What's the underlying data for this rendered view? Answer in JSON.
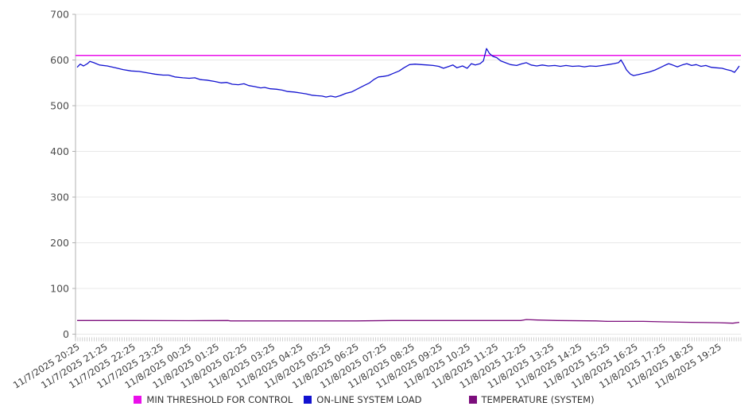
{
  "page": {
    "background": "#ffffff"
  },
  "chart_data": {
    "type": "line",
    "title": "",
    "xlabel": "",
    "ylabel": "",
    "grid": "horizontal",
    "legend_position": "bottom",
    "x_axis": {
      "labels": [
        "11/7/2025 20:25",
        "11/7/2025 21:25",
        "11/7/2025 22:25",
        "11/7/2025 23:25",
        "11/8/2025 00:25",
        "11/8/2025 01:25",
        "11/8/2025 02:25",
        "11/8/2025 03:25",
        "11/8/2025 04:25",
        "11/8/2025 05:25",
        "11/8/2025 06:25",
        "11/8/2025 07:25",
        "11/8/2025 08:25",
        "11/8/2025 09:25",
        "11/8/2025 10:25",
        "11/8/2025 11:25",
        "11/8/2025 12:25",
        "11/8/2025 13:25",
        "11/8/2025 14:25",
        "11/8/2025 15:25",
        "11/8/2025 16:25",
        "11/8/2025 17:25",
        "11/8/2025 18:25",
        "11/8/2025 19:25"
      ],
      "hours_per_label": 1,
      "span_hours": 23.73,
      "minor_tick_count": 286
    },
    "y_axis": {
      "min": 0,
      "max": 700,
      "tick_step": 100,
      "ticks": [
        0,
        100,
        200,
        300,
        400,
        500,
        600,
        700
      ]
    },
    "series": [
      {
        "name": "MIN THRESHOLD FOR CONTROL",
        "color": "#ea0fea",
        "style": "threshold",
        "value": 610
      },
      {
        "name": "ON-LINE SYSTEM LOAD",
        "color": "#1212d0",
        "style": "line",
        "points_hours_value": [
          [
            0,
            584
          ],
          [
            0.11,
            591
          ],
          [
            0.23,
            587
          ],
          [
            0.37,
            592
          ],
          [
            0.46,
            597
          ],
          [
            0.6,
            594
          ],
          [
            0.8,
            589
          ],
          [
            1.08,
            587
          ],
          [
            1.37,
            583
          ],
          [
            1.65,
            579
          ],
          [
            1.94,
            576
          ],
          [
            2.22,
            575
          ],
          [
            2.51,
            572
          ],
          [
            2.79,
            569
          ],
          [
            3.08,
            567
          ],
          [
            3.28,
            567
          ],
          [
            3.5,
            563
          ],
          [
            3.79,
            561
          ],
          [
            4.02,
            560
          ],
          [
            4.22,
            561
          ],
          [
            4.42,
            557
          ],
          [
            4.64,
            556
          ],
          [
            4.93,
            553
          ],
          [
            5.16,
            550
          ],
          [
            5.36,
            551
          ],
          [
            5.56,
            547
          ],
          [
            5.78,
            546
          ],
          [
            5.98,
            548
          ],
          [
            6.15,
            544
          ],
          [
            6.35,
            542
          ],
          [
            6.58,
            539
          ],
          [
            6.72,
            540
          ],
          [
            6.92,
            537
          ],
          [
            7.15,
            536
          ],
          [
            7.35,
            534
          ],
          [
            7.55,
            531
          ],
          [
            7.78,
            530
          ],
          [
            7.98,
            528
          ],
          [
            8.21,
            526
          ],
          [
            8.41,
            523
          ],
          [
            8.58,
            522
          ],
          [
            8.78,
            521
          ],
          [
            8.92,
            519
          ],
          [
            9.09,
            521
          ],
          [
            9.26,
            519
          ],
          [
            9.43,
            522
          ],
          [
            9.63,
            527
          ],
          [
            9.83,
            530
          ],
          [
            10.06,
            537
          ],
          [
            10.28,
            544
          ],
          [
            10.48,
            550
          ],
          [
            10.63,
            557
          ],
          [
            10.8,
            563
          ],
          [
            10.97,
            564
          ],
          [
            11.14,
            566
          ],
          [
            11.34,
            571
          ],
          [
            11.54,
            576
          ],
          [
            11.71,
            583
          ],
          [
            11.91,
            590
          ],
          [
            12.11,
            591
          ],
          [
            12.34,
            590
          ],
          [
            12.56,
            589
          ],
          [
            12.76,
            588
          ],
          [
            12.96,
            586
          ],
          [
            13.13,
            582
          ],
          [
            13.33,
            586
          ],
          [
            13.47,
            589
          ],
          [
            13.61,
            583
          ],
          [
            13.81,
            587
          ],
          [
            13.98,
            582
          ],
          [
            14.13,
            592
          ],
          [
            14.27,
            589
          ],
          [
            14.44,
            592
          ],
          [
            14.56,
            598
          ],
          [
            14.67,
            625
          ],
          [
            14.78,
            614
          ],
          [
            14.9,
            608
          ],
          [
            15.04,
            605
          ],
          [
            15.18,
            598
          ],
          [
            15.35,
            594
          ],
          [
            15.53,
            590
          ],
          [
            15.75,
            588
          ],
          [
            15.95,
            592
          ],
          [
            16.1,
            594
          ],
          [
            16.27,
            589
          ],
          [
            16.47,
            587
          ],
          [
            16.67,
            589
          ],
          [
            16.89,
            587
          ],
          [
            17.12,
            588
          ],
          [
            17.32,
            586
          ],
          [
            17.52,
            588
          ],
          [
            17.75,
            586
          ],
          [
            17.98,
            587
          ],
          [
            18.18,
            585
          ],
          [
            18.38,
            587
          ],
          [
            18.6,
            586
          ],
          [
            18.83,
            588
          ],
          [
            19.03,
            590
          ],
          [
            19.23,
            592
          ],
          [
            19.4,
            594
          ],
          [
            19.49,
            600
          ],
          [
            19.57,
            592
          ],
          [
            19.69,
            578
          ],
          [
            19.83,
            569
          ],
          [
            19.94,
            566
          ],
          [
            20.11,
            568
          ],
          [
            20.31,
            571
          ],
          [
            20.51,
            574
          ],
          [
            20.71,
            578
          ],
          [
            20.88,
            583
          ],
          [
            21.05,
            588
          ],
          [
            21.2,
            592
          ],
          [
            21.34,
            589
          ],
          [
            21.51,
            585
          ],
          [
            21.68,
            589
          ],
          [
            21.85,
            592
          ],
          [
            22.02,
            588
          ],
          [
            22.19,
            590
          ],
          [
            22.36,
            586
          ],
          [
            22.53,
            588
          ],
          [
            22.73,
            584
          ],
          [
            22.9,
            583
          ],
          [
            23.11,
            582
          ],
          [
            23.28,
            579
          ],
          [
            23.42,
            577
          ],
          [
            23.56,
            573
          ],
          [
            23.65,
            580
          ],
          [
            23.73,
            587
          ]
        ]
      },
      {
        "name": "TEMPERATURE (SYSTEM)",
        "color": "#7c0d7c",
        "style": "line",
        "points_hours_value": [
          [
            0,
            30
          ],
          [
            2,
            30
          ],
          [
            4,
            29.5
          ],
          [
            5.4,
            30
          ],
          [
            5.5,
            29
          ],
          [
            8,
            29
          ],
          [
            10,
            29
          ],
          [
            11.3,
            30
          ],
          [
            13.5,
            30
          ],
          [
            15.9,
            30
          ],
          [
            16.1,
            32
          ],
          [
            16.5,
            31
          ],
          [
            17.2,
            30
          ],
          [
            18.6,
            29
          ],
          [
            19,
            28
          ],
          [
            20.3,
            28
          ],
          [
            21,
            27
          ],
          [
            22,
            26
          ],
          [
            23,
            25
          ],
          [
            23.5,
            24
          ],
          [
            23.73,
            26
          ]
        ]
      }
    ],
    "colors": {
      "gridline": "#e8e8e8",
      "axis": "#b0b0b0",
      "minor_tick": "#c4c4c4",
      "tick_label": "#4d4d4d"
    }
  },
  "legend": {
    "items": [
      {
        "label": "MIN THRESHOLD FOR CONTROL",
        "color": "#ea0fea"
      },
      {
        "label": "ON-LINE SYSTEM LOAD",
        "color": "#1212d0"
      },
      {
        "label": "TEMPERATURE (SYSTEM)",
        "color": "#7c0d7c"
      }
    ]
  }
}
